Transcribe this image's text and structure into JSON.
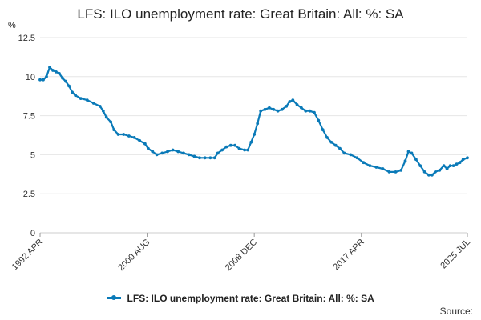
{
  "chart_data": {
    "type": "line",
    "title": "LFS: ILO unemployment rate: Great Britain: All: %: SA",
    "ylabel": "%",
    "xlabel": "",
    "ylim": [
      0,
      12.5
    ],
    "xlim": [
      "1992-04",
      "2025-07"
    ],
    "yticks": [
      "0",
      "2.5",
      "5",
      "7.5",
      "10",
      "12.5"
    ],
    "yticks_values": [
      0,
      2.5,
      5,
      7.5,
      10,
      12.5
    ],
    "xticks": [
      {
        "label": "1992 APR",
        "date": "1992-04"
      },
      {
        "label": "2000 AUG",
        "date": "2000-08"
      },
      {
        "label": "2008 DEC",
        "date": "2008-12"
      },
      {
        "label": "2017 APR",
        "date": "2017-04"
      },
      {
        "label": "2025 JUL",
        "date": "2025-07"
      }
    ],
    "grid": "horizontal",
    "legend_position": "bottom",
    "series": [
      {
        "name": "LFS: ILO unemployment rate: Great Britain: All: %: SA",
        "color": "#0a7ab8",
        "points": [
          [
            "1992-04",
            9.8
          ],
          [
            "1992-07",
            9.8
          ],
          [
            "1992-10",
            10.0
          ],
          [
            "1993-01",
            10.6
          ],
          [
            "1993-04",
            10.4
          ],
          [
            "1993-07",
            10.3
          ],
          [
            "1993-10",
            10.2
          ],
          [
            "1994-01",
            9.9
          ],
          [
            "1994-04",
            9.7
          ],
          [
            "1994-07",
            9.4
          ],
          [
            "1994-10",
            9.0
          ],
          [
            "1995-01",
            8.8
          ],
          [
            "1995-06",
            8.6
          ],
          [
            "1995-12",
            8.5
          ],
          [
            "1996-06",
            8.3
          ],
          [
            "1996-12",
            8.1
          ],
          [
            "1997-03",
            7.8
          ],
          [
            "1997-06",
            7.4
          ],
          [
            "1997-10",
            7.1
          ],
          [
            "1998-01",
            6.6
          ],
          [
            "1998-05",
            6.3
          ],
          [
            "1998-10",
            6.3
          ],
          [
            "1999-03",
            6.2
          ],
          [
            "1999-08",
            6.1
          ],
          [
            "2000-01",
            5.9
          ],
          [
            "2000-06",
            5.7
          ],
          [
            "2000-09",
            5.4
          ],
          [
            "2001-01",
            5.2
          ],
          [
            "2001-05",
            5.0
          ],
          [
            "2001-10",
            5.1
          ],
          [
            "2002-03",
            5.2
          ],
          [
            "2002-08",
            5.3
          ],
          [
            "2003-01",
            5.2
          ],
          [
            "2003-06",
            5.1
          ],
          [
            "2003-11",
            5.0
          ],
          [
            "2004-04",
            4.9
          ],
          [
            "2004-09",
            4.8
          ],
          [
            "2005-02",
            4.8
          ],
          [
            "2005-07",
            4.8
          ],
          [
            "2005-11",
            4.8
          ],
          [
            "2006-02",
            5.1
          ],
          [
            "2006-06",
            5.3
          ],
          [
            "2006-10",
            5.5
          ],
          [
            "2007-02",
            5.6
          ],
          [
            "2007-06",
            5.6
          ],
          [
            "2007-10",
            5.4
          ],
          [
            "2008-03",
            5.3
          ],
          [
            "2008-06",
            5.3
          ],
          [
            "2008-09",
            5.8
          ],
          [
            "2008-12",
            6.3
          ],
          [
            "2009-03",
            7.0
          ],
          [
            "2009-06",
            7.8
          ],
          [
            "2009-10",
            7.9
          ],
          [
            "2010-02",
            8.0
          ],
          [
            "2010-06",
            7.9
          ],
          [
            "2010-10",
            7.8
          ],
          [
            "2011-02",
            7.9
          ],
          [
            "2011-06",
            8.1
          ],
          [
            "2011-09",
            8.4
          ],
          [
            "2011-12",
            8.5
          ],
          [
            "2012-04",
            8.2
          ],
          [
            "2012-08",
            8.0
          ],
          [
            "2012-12",
            7.8
          ],
          [
            "2013-04",
            7.8
          ],
          [
            "2013-08",
            7.7
          ],
          [
            "2013-12",
            7.2
          ],
          [
            "2014-04",
            6.6
          ],
          [
            "2014-08",
            6.1
          ],
          [
            "2014-12",
            5.8
          ],
          [
            "2015-04",
            5.6
          ],
          [
            "2015-08",
            5.4
          ],
          [
            "2015-12",
            5.1
          ],
          [
            "2016-06",
            5.0
          ],
          [
            "2016-12",
            4.8
          ],
          [
            "2017-06",
            4.5
          ],
          [
            "2017-12",
            4.3
          ],
          [
            "2018-06",
            4.2
          ],
          [
            "2018-12",
            4.1
          ],
          [
            "2019-06",
            3.9
          ],
          [
            "2019-12",
            3.9
          ],
          [
            "2020-05",
            4.0
          ],
          [
            "2020-09",
            4.6
          ],
          [
            "2020-12",
            5.2
          ],
          [
            "2021-03",
            5.1
          ],
          [
            "2021-07",
            4.7
          ],
          [
            "2021-11",
            4.3
          ],
          [
            "2022-03",
            3.9
          ],
          [
            "2022-07",
            3.7
          ],
          [
            "2022-10",
            3.7
          ],
          [
            "2023-01",
            3.9
          ],
          [
            "2023-05",
            4.0
          ],
          [
            "2023-09",
            4.3
          ],
          [
            "2023-12",
            4.1
          ],
          [
            "2024-03",
            4.3
          ],
          [
            "2024-06",
            4.3
          ],
          [
            "2024-09",
            4.4
          ],
          [
            "2024-12",
            4.5
          ],
          [
            "2025-03",
            4.7
          ],
          [
            "2025-07",
            4.8
          ]
        ]
      }
    ]
  },
  "legend": {
    "label": "LFS: ILO unemployment rate: Great Britain: All: %: SA"
  },
  "footer": {
    "source_label": "Source:"
  }
}
